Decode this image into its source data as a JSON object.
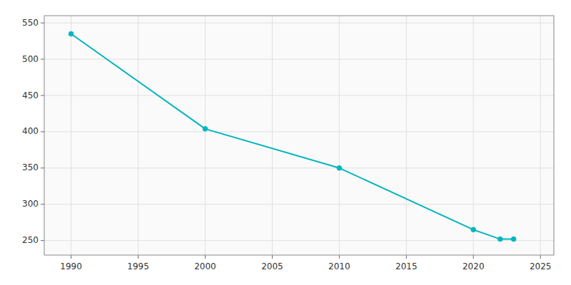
{
  "chart_data": {
    "type": "line",
    "x": [
      1990,
      2000,
      2010,
      2020,
      2022,
      2023
    ],
    "values": [
      535,
      404,
      350,
      265,
      252,
      252
    ],
    "color": "#00b5bd",
    "marker": "circle",
    "xlim": [
      1988,
      2026
    ],
    "ylim": [
      230,
      560
    ],
    "xticks": [
      1990,
      1995,
      2000,
      2005,
      2010,
      2015,
      2020,
      2025
    ],
    "yticks": [
      250,
      300,
      350,
      400,
      450,
      500,
      550
    ],
    "grid": true
  }
}
